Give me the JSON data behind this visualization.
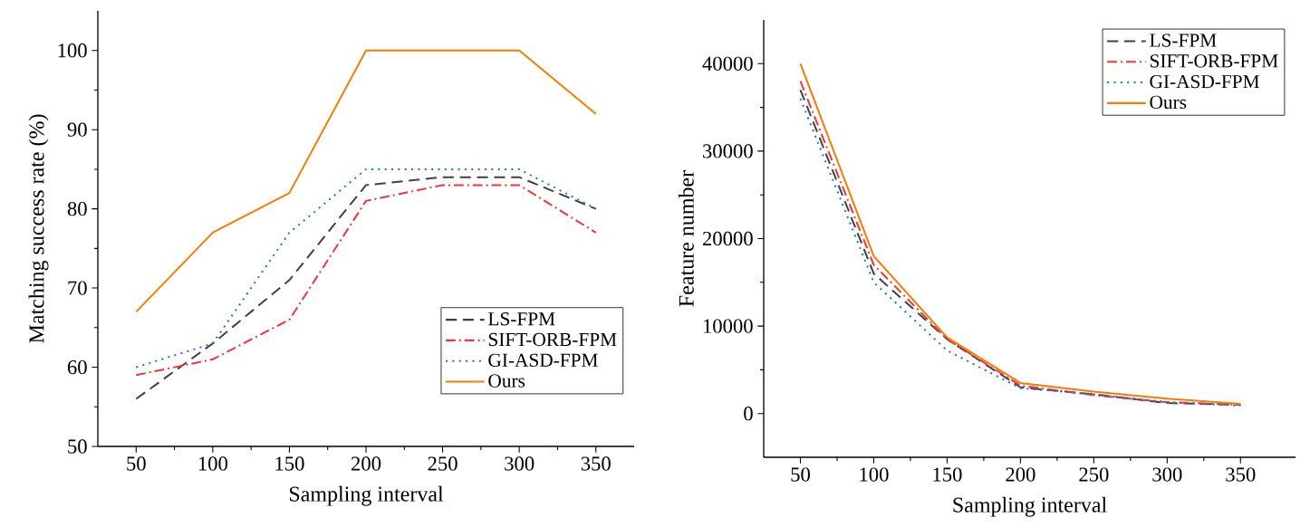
{
  "chart_data": [
    {
      "type": "line",
      "xlabel": "Sampling interval",
      "ylabel": "Matching success rate (%)",
      "x": [
        50,
        100,
        150,
        200,
        250,
        300,
        350
      ],
      "xlim": [
        25,
        375
      ],
      "xticks": [
        50,
        100,
        150,
        200,
        250,
        300,
        350
      ],
      "ylim": [
        50,
        105
      ],
      "yticks": [
        50,
        60,
        70,
        80,
        90,
        100
      ],
      "grid": false,
      "legend": "bottom right",
      "series": [
        {
          "name": "LS-FPM",
          "color": "#404040",
          "line_style": "dashed",
          "values": [
            56,
            63,
            71,
            83,
            84,
            84,
            80
          ]
        },
        {
          "name": "SIFT-ORB-FPM",
          "color": "#e8383d",
          "line_style": "dashdot",
          "values": [
            59,
            61,
            66,
            81,
            83,
            83,
            77
          ]
        },
        {
          "name": "GI-ASD-FPM",
          "color": "#1f6fd6",
          "line_style": "dotted",
          "values": [
            60,
            63,
            77,
            85,
            85,
            85,
            80
          ]
        },
        {
          "name": "Ours",
          "color": "#f57c00",
          "line_style": "solid",
          "values": [
            67,
            77,
            82,
            100,
            100,
            100,
            92
          ]
        }
      ]
    },
    {
      "type": "line",
      "xlabel": "Sampling interval",
      "ylabel": "Feature number",
      "x": [
        50,
        100,
        150,
        200,
        250,
        300,
        350
      ],
      "xlim": [
        25,
        387.5
      ],
      "xticks": [
        50,
        100,
        150,
        200,
        250,
        300,
        350
      ],
      "ylim": [
        -5000,
        45000
      ],
      "yticks": [
        0,
        10000,
        20000,
        30000,
        40000
      ],
      "grid": false,
      "legend": "top right",
      "series": [
        {
          "name": "LS-FPM",
          "color": "#404040",
          "line_style": "dashed",
          "values": [
            37000,
            16000,
            8500,
            3000,
            2200,
            1200,
            1000
          ]
        },
        {
          "name": "SIFT-ORB-FPM",
          "color": "#e8383d",
          "line_style": "dashdot",
          "values": [
            38000,
            17000,
            8500,
            3200,
            2100,
            1300,
            1000
          ]
        },
        {
          "name": "GI-ASD-FPM",
          "color": "#1f6fd6",
          "line_style": "dotted",
          "values": [
            36000,
            15000,
            7200,
            2900,
            2200,
            1300,
            900
          ]
        },
        {
          "name": "Ours",
          "color": "#f57c00",
          "line_style": "solid",
          "values": [
            40000,
            18000,
            8700,
            3500,
            2500,
            1700,
            1100
          ]
        }
      ]
    }
  ]
}
